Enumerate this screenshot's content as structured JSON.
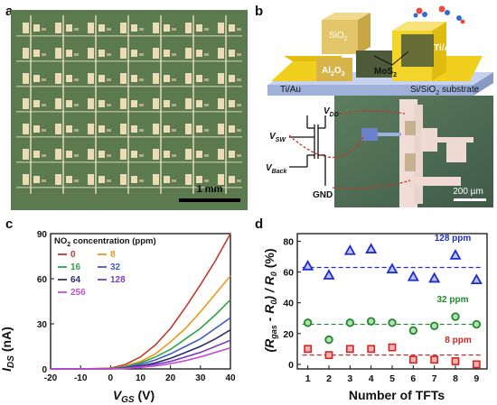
{
  "panels": {
    "a": {
      "letter": "a",
      "scale_bar": "1 mm",
      "colors": {
        "background": "#5b7a4d",
        "pads": "#e7d7b2",
        "lines": "#f3e8cf"
      }
    },
    "b": {
      "letter": "b",
      "labels": {
        "sio2": "SiO",
        "sio2_sub": "2",
        "tiau_left": "Ti/Au",
        "tiau_right": "Ti/Au",
        "al2o3_a": "Al",
        "al2o3_b": "2",
        "al2o3_c": "O",
        "al2o3_d": "3",
        "mos2": "MoS",
        "mos2_sub": "2",
        "substrate": "Si/SiO",
        "substrate_sub": "2",
        "substrate_tail": " substrate",
        "vdd": "V",
        "vdd_sub": "DD",
        "vsw": "V",
        "vsw_sub": "SW",
        "vback": "V",
        "vback_sub": "Back",
        "gnd": "GND",
        "scale_bar": "200 µm"
      },
      "colors": {
        "substrate": "#b8c7e6",
        "electrode": "#f1cf1e",
        "mos2": "#4e5b3a",
        "dielectric": "#d8b34a"
      }
    },
    "c": {
      "letter": "c",
      "legend_title": "NO",
      "legend_title_sub": "2",
      "legend_title_tail": " concentration (ppm)",
      "ylabel": "I",
      "ylabel_sub": "DS",
      "ylabel_tail": " (nA)",
      "xlabel": "V",
      "xlabel_sub": "GS",
      "xlabel_tail": " (V)"
    },
    "d": {
      "letter": "d",
      "ylabel_a": "(R",
      "ylabel_gas": "gas",
      "ylabel_b": " - R",
      "ylabel_0a": "0",
      "ylabel_c": ") / R",
      "ylabel_0b": "0",
      "ylabel_d": " (%)",
      "xlabel": "Number of TFTs"
    }
  },
  "chart_data": [
    {
      "type": "line",
      "panel": "c",
      "title": "",
      "xlabel": "VGS (V)",
      "ylabel": "IDS (nA)",
      "xlim": [
        -20,
        40
      ],
      "ylim": [
        0,
        90
      ],
      "x_ticks": [
        -20,
        -10,
        0,
        10,
        20,
        30,
        40
      ],
      "y_ticks": [
        0,
        30,
        60,
        90
      ],
      "legend_title": "NO2 concentration (ppm)",
      "legend_placement": "top-left",
      "x": [
        -20,
        -10,
        0,
        5,
        10,
        15,
        20,
        25,
        30,
        35,
        40
      ],
      "series": [
        {
          "name": "0",
          "color": "#c0392b",
          "values": [
            0,
            0,
            0.5,
            3,
            8,
            16,
            27,
            41,
            56,
            72,
            90
          ]
        },
        {
          "name": "8",
          "color": "#e89a1c",
          "values": [
            0,
            0,
            0.3,
            2,
            5,
            10,
            18,
            27,
            38,
            50,
            62
          ]
        },
        {
          "name": "16",
          "color": "#2fa34a",
          "values": [
            0,
            0,
            0.2,
            1.5,
            4,
            8,
            13,
            20,
            27,
            36,
            46
          ]
        },
        {
          "name": "32",
          "color": "#3d5cc4",
          "values": [
            0,
            0,
            0.1,
            1,
            3,
            6,
            10,
            15,
            20,
            27,
            34
          ]
        },
        {
          "name": "64",
          "color": "#2b2f6b",
          "values": [
            0,
            0,
            0,
            0.7,
            2,
            4,
            7,
            11,
            15,
            20,
            26
          ]
        },
        {
          "name": "128",
          "color": "#7b3fbf",
          "values": [
            0,
            0,
            0,
            0.5,
            1.5,
            3,
            5,
            8,
            11,
            15,
            19
          ]
        },
        {
          "name": "256",
          "color": "#c64fd0",
          "values": [
            0,
            0,
            0,
            0.3,
            1,
            2,
            3.5,
            5.5,
            8,
            11,
            14
          ]
        }
      ]
    },
    {
      "type": "scatter",
      "panel": "d",
      "title": "",
      "xlabel": "Number of TFTs",
      "ylabel": "(Rgas - R0) / R0 (%)",
      "xlim": [
        0.5,
        9.5
      ],
      "ylim": [
        -3,
        85
      ],
      "x_ticks": [
        1,
        2,
        3,
        4,
        5,
        6,
        7,
        8,
        9
      ],
      "y_ticks": [
        0,
        20,
        40,
        60,
        80
      ],
      "x": [
        1,
        2,
        3,
        4,
        5,
        6,
        7,
        8,
        9
      ],
      "series": [
        {
          "name": "128 ppm",
          "marker": "triangle",
          "color": "#1f2bd1",
          "mean": 63,
          "values": [
            64,
            58,
            74,
            75,
            62,
            57,
            56,
            71,
            55
          ]
        },
        {
          "name": "32 ppm",
          "marker": "circle",
          "color": "#1e8a2a",
          "mean": 26,
          "values": [
            27,
            16,
            27,
            28,
            27,
            22,
            25,
            31,
            26
          ]
        },
        {
          "name": "8 ppm",
          "marker": "square",
          "color": "#d22424",
          "mean": 6,
          "values": [
            10,
            6,
            10,
            10,
            11,
            3,
            3,
            2,
            0
          ]
        }
      ]
    }
  ]
}
